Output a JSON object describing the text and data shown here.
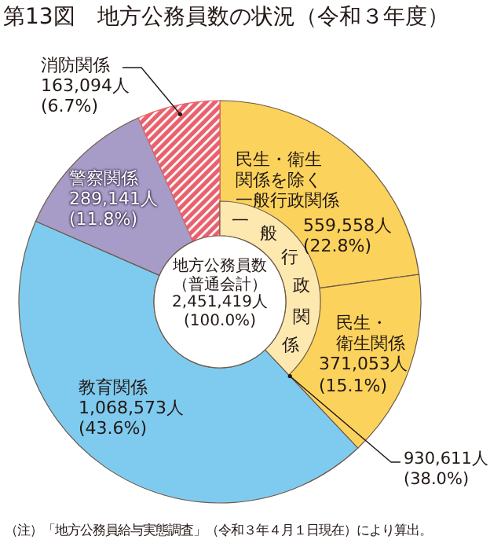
{
  "chart_data": {
    "type": "donut",
    "title": "第13図　地方公務員数の状況（令和３年度）",
    "categories": [
      "民生・衛生関係を除く一般行政関係",
      "民生・衛生関係",
      "教育関係",
      "警察関係",
      "消防関係"
    ],
    "values": [
      559558,
      371053,
      1068573,
      289141,
      163094
    ],
    "value_labels": [
      "559,558人\n(22.8%)",
      "371,053人\n(15.1%)",
      "1,068,573人\n(43.6%)",
      "289,141人\n(11.8%)",
      "163,094人\n(6.7%)"
    ],
    "colors": [
      "#fbd35c",
      "#fbd35c",
      "#7fcbef",
      "#a79bc7",
      "#e8616d"
    ],
    "annotations": [
      "一般行政関係",
      "930,611人\n(38.0%)",
      "地方公務員数（普通会計）2,451,419人(100.0%)",
      "（注）「地方公務員給与実態調査」（令和３年４月１日現在）により算出。"
    ]
  }
}
